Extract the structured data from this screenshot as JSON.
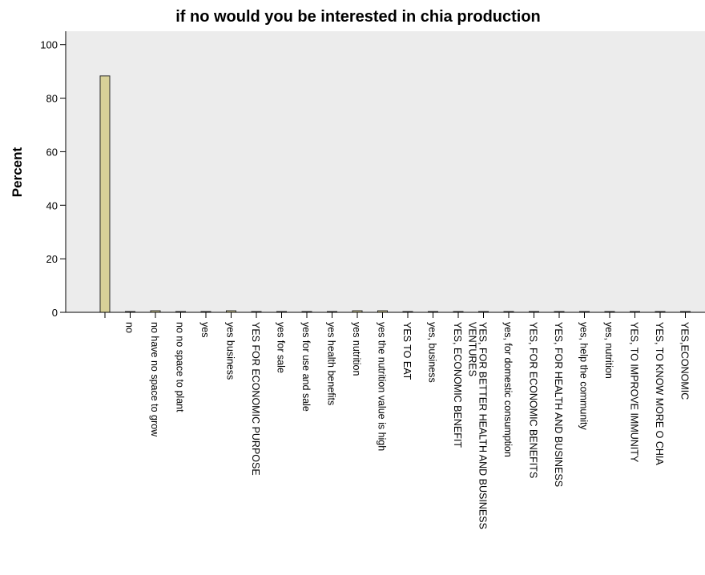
{
  "chart_data": {
    "type": "bar",
    "title": "if no would you be interested in chia production",
    "xlabel": "",
    "ylabel": "Percent",
    "ylim": [
      0,
      105
    ],
    "yticks": [
      0,
      20,
      40,
      60,
      80,
      100
    ],
    "grid": false,
    "plot_background": "#ececec",
    "bar_color": "#d8d198",
    "categories": [
      "",
      "no",
      "no have no space to grow",
      "no no space to plant",
      "yes",
      "yes business",
      "YES FOR ECONOMIC PURPOSE",
      "yes for sale",
      "yes for use and sale",
      "yes health benefits",
      "yes nutrition",
      "yes the nutrition value is high",
      "YES TO EAT",
      "yes, business",
      "YES, ECONOMIC BENEFIT",
      "YES, FOR BETTER HEALTH AND BUSINESS VENTURES",
      "yes, for domestic consumption",
      "YES, FOR ECONOMIC BENEFITS",
      "YES, FOR HEALTH AND BUSINESS",
      "yes, help the community",
      "yes, nutrition",
      "YES, TO IMPROVE IMMUNITY",
      "YES, TO KNOW MORE O CHIA",
      "YES,ECONOMIC"
    ],
    "values": [
      88.3,
      0.3,
      0.6,
      0.3,
      0.3,
      0.6,
      0.3,
      0.3,
      0.3,
      0.3,
      0.6,
      0.6,
      0.3,
      0.3,
      0.3,
      0.3,
      0.3,
      0.3,
      0.3,
      0.3,
      0.3,
      0.3,
      0.3,
      0.3
    ]
  }
}
